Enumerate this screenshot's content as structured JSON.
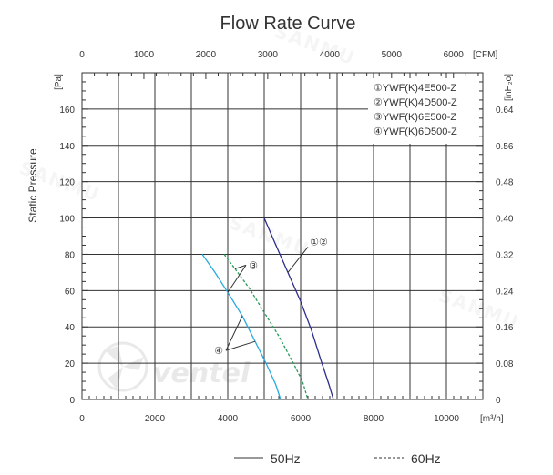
{
  "chart_data": {
    "type": "line",
    "title": "Flow Rate Curve",
    "ylabel": "Static Pressure",
    "y_unit_left": "[Pa]",
    "y_unit_right": "[inH₂o]",
    "x_unit_bottom": "[m³/h]",
    "x_unit_top": "[CFM]",
    "xlim": [
      0,
      11000
    ],
    "ylim": [
      0,
      180
    ],
    "x_ticks": [
      "0",
      "2000",
      "4000",
      "6000",
      "8000",
      "10000"
    ],
    "x_top_ticks": [
      "0",
      "1000",
      "2000",
      "3000",
      "4000",
      "5000",
      "6000"
    ],
    "y_ticks": [
      "0",
      "20",
      "40",
      "60",
      "80",
      "100",
      "120",
      "140",
      "160"
    ],
    "y_right_ticks": [
      "0",
      "0.08",
      "0.16",
      "0.24",
      "0.32",
      "0.40",
      "0.48",
      "0.56",
      "0.64"
    ],
    "grid": true,
    "legend": [
      "①YWF(K)4E500-Z",
      "②YWF(K)4D500-Z",
      "③YWF(K)6E500-Z",
      "④YWF(K)6D500-Z"
    ],
    "legend_position": "top-right",
    "series": [
      {
        "markers": "①②",
        "style": "solid",
        "color": "#2b2d8c",
        "points": [
          [
            5000,
            100
          ],
          [
            5300,
            86
          ],
          [
            5650,
            70
          ],
          [
            6000,
            54
          ],
          [
            6300,
            38
          ],
          [
            6550,
            22
          ],
          [
            6780,
            8
          ],
          [
            6900,
            0
          ]
        ]
      },
      {
        "markers": "③",
        "style": "dashed",
        "color": "#2a9a5a",
        "points": [
          [
            3900,
            80
          ],
          [
            4200,
            72
          ],
          [
            4600,
            61
          ],
          [
            5000,
            48
          ],
          [
            5400,
            35
          ],
          [
            5800,
            20
          ],
          [
            6050,
            10
          ],
          [
            6200,
            0
          ]
        ]
      },
      {
        "markers": "④",
        "style": "solid",
        "color": "#29a9df",
        "points": [
          [
            3300,
            80
          ],
          [
            3650,
            70
          ],
          [
            4000,
            59
          ],
          [
            4400,
            46
          ],
          [
            4750,
            32
          ],
          [
            5050,
            20
          ],
          [
            5320,
            8
          ],
          [
            5450,
            0
          ]
        ]
      }
    ],
    "callouts": [
      "①②",
      "③",
      "④"
    ],
    "footer_legend": [
      {
        "label": "50Hz",
        "style": "solid"
      },
      {
        "label": "60Hz",
        "style": "dashed"
      }
    ]
  },
  "watermark": [
    "SANMU",
    "ventel"
  ]
}
